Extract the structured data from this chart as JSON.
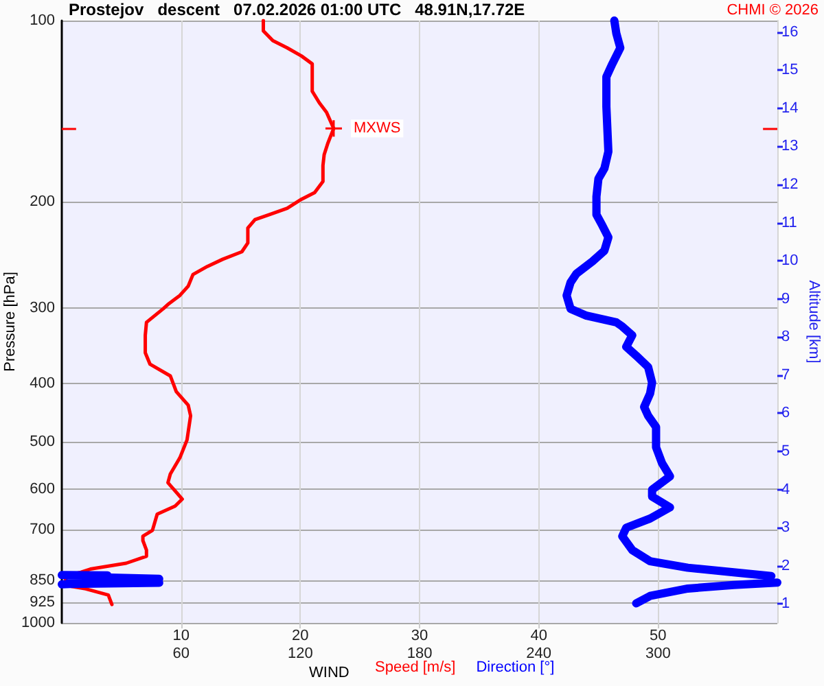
{
  "chart_data": {
    "type": "line",
    "title": "Prostejov   descent   07.02.2026 01:00 UTC   48.91N,17.72E",
    "xlabel": "WIND",
    "ylabel": "Pressure [hPa]",
    "y2label": "Altitude [km]",
    "annotations": [
      "CHMI © 2026",
      {
        "text": "MXWS",
        "x": 22.8,
        "y": 151
      }
    ],
    "xlim": [
      0,
      60
    ],
    "xticks": [
      10,
      20,
      30,
      40,
      50
    ],
    "x2lim": [
      0,
      360
    ],
    "x2ticks": [
      60,
      120,
      180,
      240,
      300
    ],
    "ylim": [
      1000,
      100
    ],
    "yticks": [
      100,
      200,
      300,
      400,
      500,
      600,
      700,
      850,
      925,
      1000
    ],
    "y2lim": [
      0.5,
      16.3
    ],
    "y2ticks": [
      1,
      2,
      3,
      4,
      5,
      6,
      7,
      8,
      9,
      10,
      11,
      12,
      13,
      14,
      15,
      16
    ],
    "log": "y",
    "grid": true,
    "legend": "bottom",
    "marker": "none",
    "series": [
      {
        "name": "Speed [m/s]",
        "color": "#ff0000",
        "x": [
          16.9,
          16.9,
          17.7,
          18.9,
          20.1,
          21.0,
          21.0,
          21.0,
          21.6,
          22.2,
          22.8,
          22.3,
          22.0,
          21.9,
          21.9,
          21.2,
          20.1,
          18.9,
          17.4,
          16.2,
          15.6,
          15.6,
          15.1,
          13.5,
          12.2,
          11.0,
          10.6,
          9.9,
          8.9,
          8.5,
          7.1,
          7.0,
          7.0,
          7.4,
          9.1,
          9.6,
          10.6,
          10.8,
          10.5,
          9.9,
          9.1,
          8.9,
          10.1,
          9.5,
          8.0,
          7.6,
          6.8,
          6.8,
          7.1,
          7.1,
          5.4,
          2.4,
          1.6,
          0.2,
          0.4,
          0.8,
          2.0,
          3.9,
          4.2
        ],
        "values": [
          100,
          104,
          108,
          111,
          114.5,
          118,
          124,
          131,
          137,
          142,
          151,
          160,
          167,
          174,
          185,
          193,
          198,
          205,
          210,
          214,
          221,
          234,
          242,
          249,
          256,
          264,
          276,
          286,
          296,
          301,
          317,
          333,
          356,
          372,
          389,
          413,
          435,
          453,
          497,
          532,
          566,
          585,
          623,
          640,
          660,
          702,
          718,
          730,
          757,
          775,
          796,
          814,
          824,
          837,
          853,
          870,
          878,
          899,
          932
        ]
      },
      {
        "name": "Direction [°]",
        "color": "#0000ff",
        "axis": "x2",
        "x": [
          278,
          279,
          281,
          277,
          274,
          274,
          275,
          273,
          270,
          269,
          269,
          272,
          275,
          273,
          267,
          259,
          256,
          254,
          256,
          264,
          279,
          282,
          287,
          284,
          289,
          295,
          297,
          296,
          293,
          295,
          299,
          299,
          302,
          306,
          297,
          297,
          306,
          296,
          284,
          282,
          287,
          296,
          315,
          338,
          357,
          null,
          0,
          23,
          4,
          49,
          4,
          49,
          4,
          0,
          null,
          360,
          338,
          315,
          296,
          289
        ],
        "values": [
          100,
          105,
          111,
          118,
          124,
          139,
          165,
          176,
          183,
          196,
          210,
          219,
          229,
          241,
          251,
          263,
          272,
          286,
          301,
          309,
          317,
          322,
          333,
          348,
          360,
          376,
          399,
          416,
          438,
          453,
          473,
          511,
          543,
          571,
          601,
          617,
          643,
          671,
          695,
          718,
          757,
          790,
          810,
          824,
          836,
          null,
          833,
          834,
          838,
          845,
          853,
          858,
          862,
          863,
          null,
          857,
          865,
          877,
          902,
          928
        ]
      }
    ]
  }
}
